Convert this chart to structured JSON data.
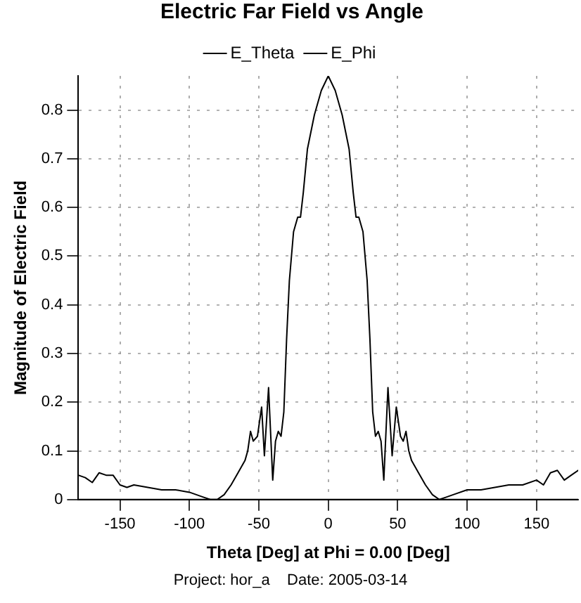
{
  "chart_data": {
    "type": "line",
    "title": "Electric Far Field vs Angle",
    "xlabel": "Theta [Deg] at Phi = 0.00 [Deg]",
    "ylabel": "Magnitude of Electric Field",
    "annotations": [
      "Project: hor_a    Date: 2005-03-14"
    ],
    "xlim": [
      -180,
      180
    ],
    "xticks": [
      -150,
      -100,
      -50,
      0,
      50,
      100,
      150
    ],
    "ylim": [
      0,
      0.87
    ],
    "yticks": [
      0,
      0.1,
      0.2,
      0.3,
      0.4,
      0.5,
      0.6,
      0.7,
      0.8
    ],
    "grid": true,
    "legend": "top",
    "marker": "none",
    "line_style": "solid",
    "series": [
      {
        "name": "E_Theta",
        "color": "#000000",
        "x": [
          -180,
          -175,
          -170,
          -165,
          -160,
          -155,
          -150,
          -145,
          -140,
          -130,
          -120,
          -110,
          -100,
          -90,
          -85,
          -80,
          -75,
          -70,
          -65,
          -60,
          -58,
          -56,
          -54,
          -51,
          -48,
          -46,
          -43,
          -40,
          -38,
          -36,
          -34,
          -32,
          -30,
          -28,
          -25,
          -22,
          -20,
          -18,
          -15,
          -10,
          -5,
          0,
          5,
          10,
          15,
          18,
          20,
          22,
          25,
          28,
          30,
          32,
          34,
          36,
          38,
          40,
          43,
          46,
          49,
          52,
          54,
          56,
          58,
          60,
          65,
          70,
          75,
          80,
          85,
          90,
          100,
          110,
          120,
          130,
          140,
          150,
          155,
          160,
          165,
          170,
          175,
          180
        ],
        "values": [
          0.05,
          0.045,
          0.035,
          0.055,
          0.05,
          0.05,
          0.03,
          0.025,
          0.03,
          0.025,
          0.02,
          0.02,
          0.015,
          0.005,
          0,
          0,
          0.01,
          0.03,
          0.055,
          0.08,
          0.1,
          0.14,
          0.12,
          0.13,
          0.19,
          0.09,
          0.23,
          0.04,
          0.12,
          0.14,
          0.13,
          0.18,
          0.33,
          0.45,
          0.55,
          0.58,
          0.58,
          0.63,
          0.72,
          0.79,
          0.84,
          0.87,
          0.84,
          0.79,
          0.72,
          0.63,
          0.58,
          0.58,
          0.55,
          0.45,
          0.33,
          0.18,
          0.13,
          0.14,
          0.12,
          0.04,
          0.23,
          0.09,
          0.19,
          0.13,
          0.12,
          0.14,
          0.1,
          0.08,
          0.055,
          0.03,
          0.01,
          0,
          0.005,
          0.01,
          0.02,
          0.02,
          0.025,
          0.03,
          0.03,
          0.04,
          0.03,
          0.055,
          0.06,
          0.04,
          0.05,
          0.06
        ]
      },
      {
        "name": "E_Phi",
        "color": "#000000",
        "x": [
          -180,
          180
        ],
        "values": [
          0,
          0
        ]
      }
    ]
  }
}
